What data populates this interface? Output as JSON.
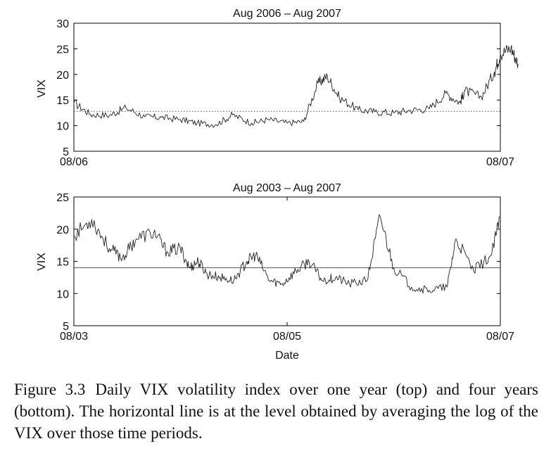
{
  "chart_data": [
    {
      "type": "line",
      "title": "Aug 2006 – Aug 2007",
      "xlabel": "",
      "ylabel": "VIX",
      "xlim": [
        "2006-08",
        "2007-08"
      ],
      "ylim": [
        5,
        30
      ],
      "yticks": [
        5,
        10,
        15,
        20,
        25,
        30
      ],
      "xtick_labels": [
        "08/06",
        "08/07"
      ],
      "grid": false,
      "reference_line": {
        "y": 12.8,
        "style": "dotted"
      },
      "series": [
        {
          "x": [
            "2006-08-01",
            "2006-08-15",
            "2006-09-01",
            "2006-09-15",
            "2006-10-01",
            "2006-10-15",
            "2006-11-01",
            "2006-11-15",
            "2006-12-01",
            "2006-12-15",
            "2007-01-01",
            "2007-01-15",
            "2007-02-01",
            "2007-02-15",
            "2007-02-27",
            "2007-03-05",
            "2007-03-15",
            "2007-04-01",
            "2007-04-15",
            "2007-05-01",
            "2007-05-15",
            "2007-06-01",
            "2007-06-15",
            "2007-06-27",
            "2007-07-01",
            "2007-07-15",
            "2007-07-26",
            "2007-08-01",
            "2007-08-10",
            "2007-08-16"
          ],
          "values": [
            14.5,
            12.2,
            12.0,
            13.5,
            11.7,
            11.6,
            11.2,
            10.5,
            10.2,
            12.1,
            10.5,
            11.2,
            10.5,
            10.8,
            18.3,
            19.6,
            15.5,
            13.1,
            12.7,
            12.5,
            13.0,
            13.3,
            16.3,
            14.5,
            16.8,
            15.6,
            20.5,
            24.0,
            25.2,
            22.0
          ]
        }
      ]
    },
    {
      "type": "line",
      "title": "Aug 2003 – Aug 2007",
      "xlabel": "Date",
      "ylabel": "VIX",
      "xlim": [
        "2003-08",
        "2007-08"
      ],
      "ylim": [
        5,
        25
      ],
      "yticks": [
        5,
        10,
        15,
        20,
        25
      ],
      "xtick_labels": [
        "08/03",
        "08/05",
        "08/07"
      ],
      "grid": false,
      "reference_line": {
        "y": 14.0,
        "style": "solid"
      },
      "series": [
        {
          "x": [
            "2003-08-01",
            "2003-10-01",
            "2003-12-01",
            "2004-01-15",
            "2004-03-01",
            "2004-05-01",
            "2004-06-15",
            "2004-08-01",
            "2004-09-01",
            "2004-10-01",
            "2004-11-01",
            "2004-12-15",
            "2005-02-01",
            "2005-03-15",
            "2005-04-15",
            "2005-06-01",
            "2005-07-15",
            "2005-09-01",
            "2005-10-15",
            "2005-12-01",
            "2006-01-15",
            "2006-03-01",
            "2006-05-01",
            "2006-06-15",
            "2006-08-01",
            "2006-10-01",
            "2006-12-01",
            "2007-02-01",
            "2007-03-01",
            "2007-05-01",
            "2007-07-01",
            "2007-08-01"
          ],
          "values": [
            19.0,
            21.5,
            17.0,
            15.5,
            18.5,
            19.5,
            16.5,
            17.0,
            14.0,
            15.0,
            13.0,
            12.5,
            12.0,
            15.0,
            16.0,
            12.0,
            11.5,
            13.5,
            15.0,
            12.0,
            12.5,
            11.5,
            12.0,
            22.0,
            14.0,
            11.0,
            10.5,
            11.0,
            18.5,
            13.5,
            16.0,
            22.0
          ]
        }
      ]
    }
  ],
  "caption": {
    "label": "Figure 3.3",
    "text": "Daily VIX volatility index over one year (top) and four years (bottom). The horizontal line is at the level obtained by averaging the log of the VIX over those time periods."
  },
  "colors": {
    "line": "#222222",
    "axis": "#000000",
    "reference": "#555555"
  }
}
